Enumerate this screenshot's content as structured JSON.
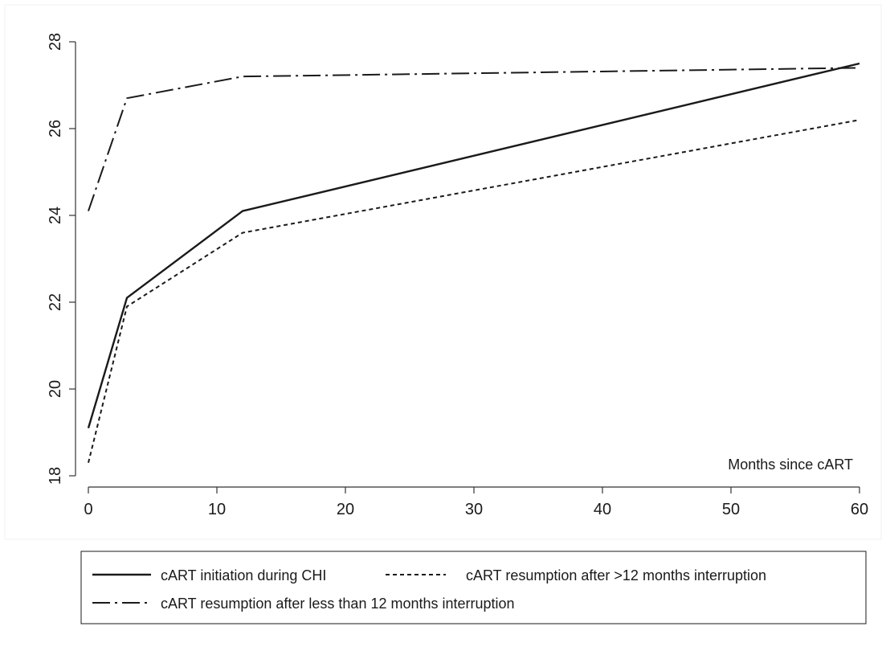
{
  "chart_data": {
    "type": "line",
    "title": "",
    "xlabel": "",
    "ylabel": "",
    "annotation": "Months since cART",
    "xlim": [
      0,
      60
    ],
    "ylim": [
      18,
      28
    ],
    "x_ticks": [
      0,
      10,
      20,
      30,
      40,
      50,
      60
    ],
    "y_ticks": [
      18,
      20,
      22,
      24,
      26,
      28
    ],
    "grid": false,
    "legend_position": "bottom",
    "series": [
      {
        "name": "cART initiation during CHI",
        "style": "solid",
        "x": [
          0,
          3,
          12,
          60
        ],
        "y": [
          19.1,
          22.1,
          24.1,
          27.5
        ]
      },
      {
        "name": "cART resumption after >12 months interruption",
        "style": "dotted",
        "x": [
          0,
          3,
          12,
          60
        ],
        "y": [
          18.3,
          21.9,
          23.6,
          26.2
        ]
      },
      {
        "name": "cART resumption after less than 12 months interruption",
        "style": "dashdot",
        "x": [
          0,
          3,
          12,
          60
        ],
        "y": [
          24.1,
          26.7,
          27.2,
          27.4
        ]
      }
    ]
  },
  "colors": {
    "line": "#1a1a1a",
    "axis": "#333333",
    "background": "#ffffff"
  }
}
